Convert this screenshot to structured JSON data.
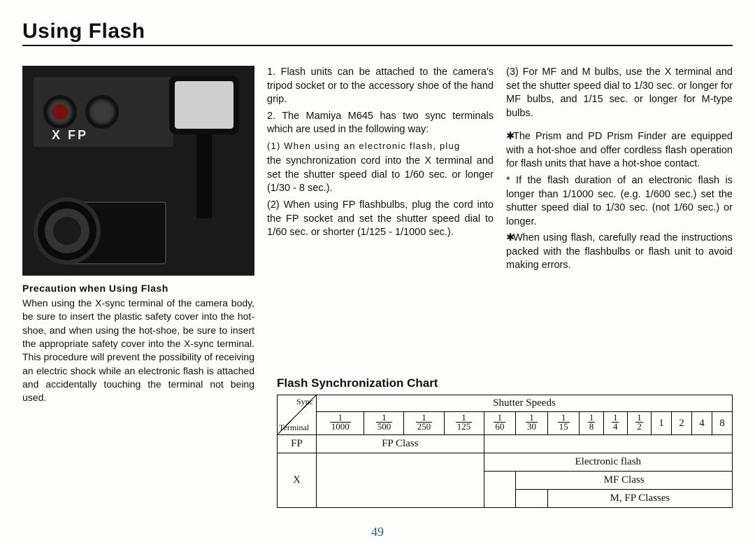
{
  "title": "Using    Flash",
  "page_number": "49",
  "precaution": {
    "heading": "Precaution when Using Flash",
    "body": "When using the X-sync terminal of the camera body, be sure to insert the plastic safety cover into the hot-shoe, and when using the hot-shoe, be sure to insert the appropriate safety cover into the X-sync terminal. This procedure will prevent the possibility of receiving an electric shock while an electronic flash is attached and accidentally touching the terminal not being used."
  },
  "col2": {
    "p1": "1. Flash units can be attached to the camera's tripod socket or to the accessory shoe of the hand grip.",
    "p2a": "2. The Mamiya M645 has two sync terminals which are used in the following way:",
    "p2b": "(1) When using an electronic flash, plug",
    "p2c": "the synchronization cord into the X terminal and set the shutter speed dial to 1/60 sec. or longer (1/30 - 8 sec.).",
    "p2d": "(2) When using FP flashbulbs, plug the cord into the FP socket and set the shutter speed dial to 1/60 sec. or shorter (1/125 - 1/1000 sec.)."
  },
  "col3": {
    "p1": "(3) For MF and M bulbs, use the X terminal and set the shutter speed dial to 1/30 sec. or longer for MF bulbs, and 1/15 sec. or longer for M-type bulbs.",
    "p2": "The Prism and PD Prism Finder are equipped with a hot-shoe and offer cordless flash operation for flash units that have a hot-shoe contact.",
    "p3": "* If the flash duration of an electronic flash is longer than 1/1000 sec. (e.g. 1/600 sec.) set the shutter speed dial to 1/30 sec. (not 1/60 sec.) or longer.",
    "p4": "When using flash, carefully read the instructions packed with the flashbulbs or flash unit to avoid making errors."
  },
  "chart": {
    "title": "Flash Synchronization Chart",
    "corner_top": "Sync",
    "corner_bottom": "Terminal",
    "header": "Shutter Speeds",
    "speeds_frac": [
      "1000",
      "500",
      "250",
      "125",
      "60",
      "30",
      "15",
      "8",
      "4",
      "2"
    ],
    "speeds_int": [
      "1",
      "2",
      "4",
      "8"
    ],
    "rows": {
      "fp_label": "FP",
      "fp_band": "FP Class",
      "x_label": "X",
      "x_band1": "Electronic flash",
      "x_band2": "MF Class",
      "x_band3": "M, FP Classes"
    }
  },
  "sync_panel_label": "X   FP"
}
